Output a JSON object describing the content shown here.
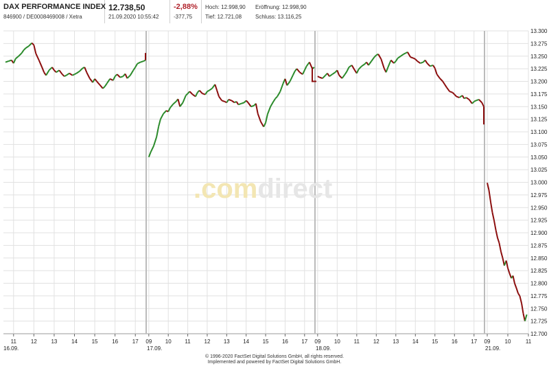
{
  "header": {
    "title": "DAX PERFORMANCE INDEX",
    "ids": "846900 / DE0008469008 / Xetra",
    "price": "12.738,50",
    "datetime": "21.09.2020 10:55:42",
    "change_pct": "-2,88%",
    "change_abs": "-377,75",
    "high": "Hoch: 12.998,90",
    "open": "Eröffnung: 12.998,90",
    "low": "Tief: 12.721,08",
    "close": "Schluss: 13.116,25"
  },
  "watermark": {
    "part1": ".com",
    "part2": "direct"
  },
  "footer": {
    "line1": "© 1996-2020 FactSet Digital Solutions GmbH, all rights reserved.",
    "line2": "Implemented and powered by FactSet Digital Solutions GmbH."
  },
  "colors": {
    "up": "#2a8a2a",
    "down": "#8b0d0d",
    "line": "#8b0d0d",
    "grid": "#e1e1e1",
    "day_sep": "#bbbbbb",
    "negative": "#b0222b"
  },
  "chart_data": {
    "type": "line",
    "style": "intraday candlesticks",
    "ylim": [
      12700,
      13300
    ],
    "y_ticks": [
      "12.700",
      "12.725",
      "12.750",
      "12.775",
      "12.800",
      "12.825",
      "12.850",
      "12.875",
      "12.900",
      "12.925",
      "12.950",
      "12.975",
      "13.000",
      "13.025",
      "13.050",
      "13.075",
      "13.100",
      "13.125",
      "13.150",
      "13.175",
      "13.200",
      "13.225",
      "13.250",
      "13.275",
      "13.300"
    ],
    "grid": true,
    "days": [
      {
        "label": "16.09.",
        "hour_ticks": [
          "11",
          "12",
          "13",
          "14",
          "15",
          "16",
          "17"
        ]
      },
      {
        "label": "17.09.",
        "hour_ticks": [
          "09",
          "10",
          "11",
          "12",
          "13",
          "14",
          "15",
          "16",
          "17"
        ]
      },
      {
        "label": "18.09.",
        "hour_ticks": [
          "09",
          "10",
          "11",
          "12",
          "13",
          "14",
          "15",
          "16",
          "17"
        ]
      },
      {
        "label": "21.09.",
        "hour_ticks": [
          "09",
          "10",
          "11"
        ]
      }
    ],
    "series": [
      {
        "day": "16.09.",
        "x": [
          10.6,
          10.75,
          10.9,
          11.0,
          11.1,
          11.25,
          11.4,
          11.5,
          11.6,
          11.75,
          11.9,
          12.0,
          12.1,
          12.25,
          12.4,
          12.5,
          12.6,
          12.75,
          12.9,
          13.0,
          13.1,
          13.25,
          13.4,
          13.5,
          13.6,
          13.75,
          13.9,
          14.0,
          14.1,
          14.25,
          14.4,
          14.5,
          14.6,
          14.75,
          14.9,
          15.0,
          15.1,
          15.25,
          15.4,
          15.5,
          15.6,
          15.75,
          15.9,
          16.0,
          16.1,
          16.25,
          16.4,
          16.5,
          16.6,
          16.75,
          16.9,
          17.0,
          17.1,
          17.25,
          17.4,
          17.5
        ],
        "y": [
          13238,
          13240,
          13242,
          13236,
          13245,
          13250,
          13256,
          13262,
          13266,
          13270,
          13276,
          13272,
          13255,
          13242,
          13228,
          13218,
          13212,
          13222,
          13228,
          13222,
          13218,
          13222,
          13214,
          13210,
          13212,
          13216,
          13212,
          13214,
          13216,
          13220,
          13226,
          13228,
          13218,
          13206,
          13198,
          13205,
          13200,
          13193,
          13186,
          13190,
          13196,
          13205,
          13202,
          13210,
          13214,
          13208,
          13210,
          13215,
          13206,
          13212,
          13222,
          13228,
          13235,
          13238,
          13240,
          13242
        ]
      },
      {
        "day": "17.09.",
        "x": [
          9.0,
          9.1,
          9.25,
          9.4,
          9.5,
          9.6,
          9.75,
          9.9,
          10.0,
          10.1,
          10.25,
          10.4,
          10.5,
          10.6,
          10.75,
          10.9,
          11.0,
          11.1,
          11.25,
          11.4,
          11.5,
          11.6,
          11.75,
          11.9,
          12.0,
          12.1,
          12.25,
          12.4,
          12.5,
          12.6,
          12.75,
          12.9,
          13.0,
          13.1,
          13.25,
          13.4,
          13.5,
          13.6,
          13.75,
          13.9,
          14.0,
          14.1,
          14.25,
          14.4,
          14.5,
          14.6,
          14.75,
          14.9,
          15.0,
          15.1,
          15.25,
          15.4,
          15.5,
          15.6,
          15.75,
          15.9,
          16.0,
          16.1,
          16.25,
          16.4,
          16.5,
          16.6,
          16.75,
          16.9,
          17.0,
          17.1,
          17.25,
          17.4,
          17.5
        ],
        "y": [
          13050,
          13060,
          13072,
          13090,
          13110,
          13125,
          13136,
          13142,
          13140,
          13148,
          13155,
          13160,
          13165,
          13150,
          13158,
          13172,
          13176,
          13180,
          13174,
          13170,
          13178,
          13182,
          13176,
          13174,
          13180,
          13182,
          13186,
          13194,
          13182,
          13170,
          13162,
          13160,
          13158,
          13164,
          13162,
          13158,
          13160,
          13154,
          13156,
          13158,
          13162,
          13158,
          13150,
          13152,
          13156,
          13136,
          13120,
          13110,
          13118,
          13135,
          13150,
          13160,
          13166,
          13170,
          13180,
          13196,
          13205,
          13192,
          13200,
          13212,
          13220,
          13225,
          13218,
          13214,
          13222,
          13230,
          13238,
          13225,
          13228
        ]
      },
      {
        "day": "18.09.",
        "x": [
          9.0,
          9.1,
          9.25,
          9.4,
          9.5,
          9.6,
          9.75,
          9.9,
          10.0,
          10.1,
          10.25,
          10.4,
          10.5,
          10.6,
          10.75,
          10.9,
          11.0,
          11.1,
          11.25,
          11.4,
          11.5,
          11.6,
          11.75,
          11.9,
          12.0,
          12.1,
          12.25,
          12.4,
          12.5,
          12.6,
          12.75,
          12.9,
          13.0,
          13.1,
          13.25,
          13.4,
          13.5,
          13.6,
          13.75,
          13.9,
          14.0,
          14.1,
          14.25,
          14.4,
          14.5,
          14.6,
          14.75,
          14.9,
          15.0,
          15.1,
          15.25,
          15.4,
          15.5,
          15.6,
          15.75,
          15.9,
          16.0,
          16.1,
          16.25,
          16.4,
          16.5,
          16.6,
          16.75,
          16.9,
          17.0,
          17.1,
          17.25,
          17.4,
          17.5
        ],
        "y": [
          13210,
          13208,
          13206,
          13212,
          13216,
          13210,
          13214,
          13218,
          13222,
          13212,
          13206,
          13214,
          13220,
          13228,
          13232,
          13222,
          13216,
          13224,
          13230,
          13234,
          13238,
          13232,
          13240,
          13248,
          13252,
          13254,
          13244,
          13226,
          13218,
          13228,
          13242,
          13236,
          13240,
          13246,
          13250,
          13254,
          13256,
          13258,
          13248,
          13246,
          13244,
          13240,
          13236,
          13238,
          13242,
          13236,
          13230,
          13232,
          13226,
          13214,
          13206,
          13200,
          13194,
          13188,
          13180,
          13178,
          13174,
          13170,
          13168,
          13172,
          13166,
          13168,
          13164,
          13156,
          13160,
          13162,
          13164,
          13158,
          13150
        ]
      },
      {
        "day": "21.09.",
        "x": [
          9.0,
          9.08,
          9.17,
          9.25,
          9.33,
          9.42,
          9.5,
          9.58,
          9.67,
          9.75,
          9.83,
          9.92,
          10.0,
          10.08,
          10.17,
          10.25,
          10.33,
          10.42,
          10.5,
          10.58,
          10.67,
          10.75,
          10.83,
          10.92
        ],
        "y": [
          12999,
          12985,
          12960,
          12940,
          12925,
          12905,
          12890,
          12880,
          12862,
          12850,
          12835,
          12845,
          12830,
          12820,
          12810,
          12815,
          12800,
          12790,
          12780,
          12775,
          12760,
          12740,
          12725,
          12738
        ]
      }
    ],
    "gap_lines": [
      {
        "from_day": "16.09.",
        "value": 13255
      },
      {
        "from_day": "18.09.",
        "value": 13200
      },
      {
        "from_day": "18.09. close",
        "value": 13116
      }
    ]
  }
}
